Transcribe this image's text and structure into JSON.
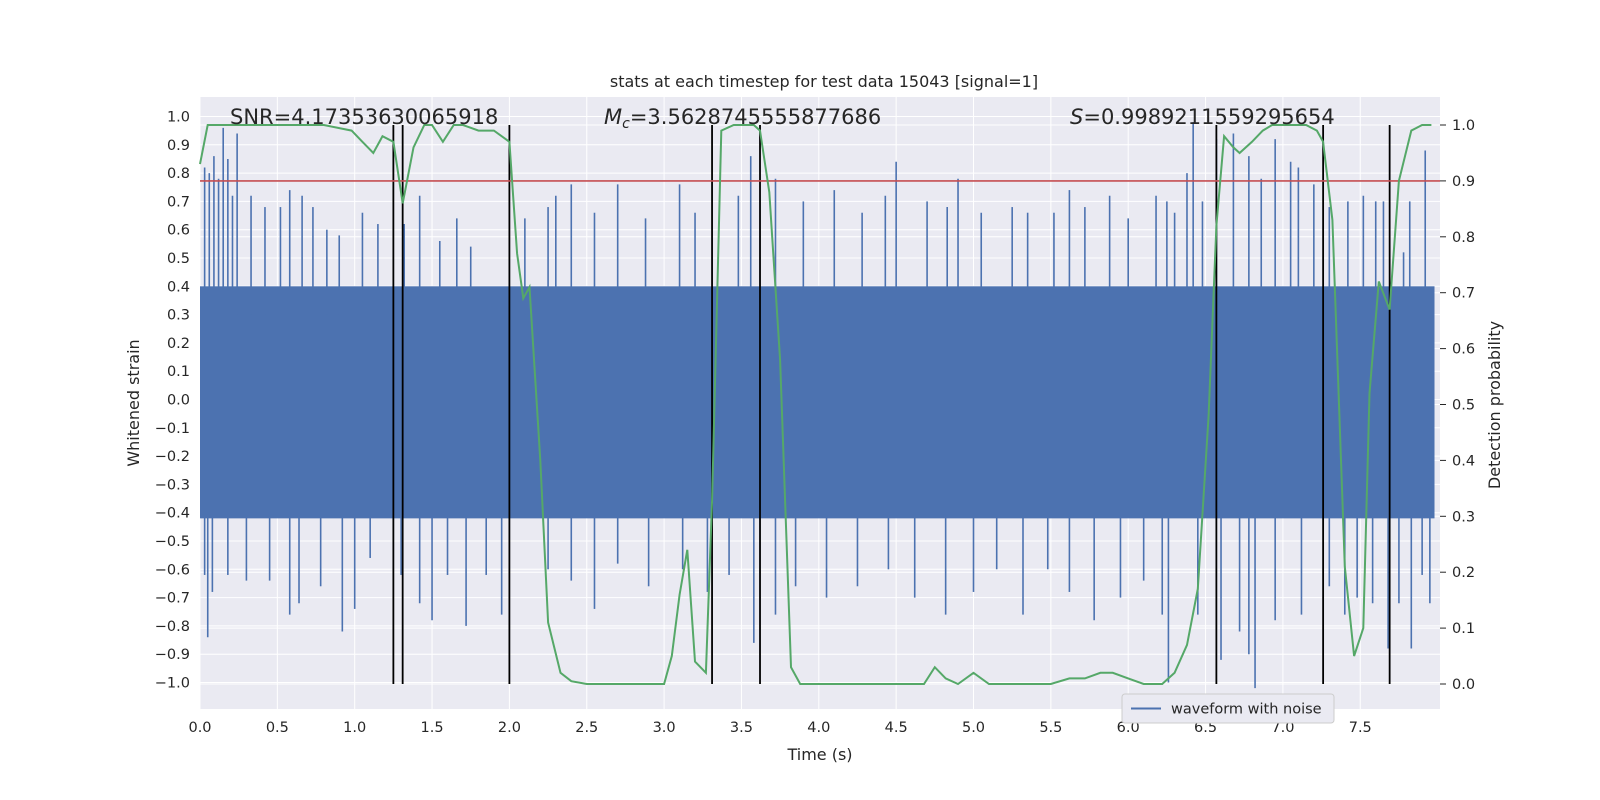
{
  "chart_data": {
    "type": "line",
    "title": "stats at each timestep for test data 15043 [signal=1]",
    "xlabel": "Time (s)",
    "ylabel_left": "Whitened strain",
    "ylabel_right": "Detection probability",
    "xlim": [
      0.0,
      8.0
    ],
    "ylim_left": [
      -1.1,
      1.1
    ],
    "ylim_right": [
      -0.05,
      1.03
    ],
    "x_ticks": [
      0.0,
      0.5,
      1.0,
      1.5,
      2.0,
      2.5,
      3.0,
      3.5,
      4.0,
      4.5,
      5.0,
      5.5,
      6.0,
      6.5,
      7.0,
      7.5
    ],
    "x_tick_labels": [
      "0.0",
      "0.5",
      "1.0",
      "1.5",
      "2.0",
      "2.5",
      "3.0",
      "3.5",
      "4.0",
      "4.5",
      "5.0",
      "5.5",
      "6.0",
      "6.5",
      "7.0",
      "7.5"
    ],
    "y_left_ticks": [
      -1.0,
      -0.9,
      -0.8,
      -0.7,
      -0.6,
      -0.5,
      -0.4,
      -0.3,
      -0.2,
      -0.1,
      0.0,
      0.1,
      0.2,
      0.3,
      0.4,
      0.5,
      0.6,
      0.7,
      0.8,
      0.9,
      1.0
    ],
    "y_left_tick_labels": [
      "−1.0",
      "−0.9",
      "−0.8",
      "−0.7",
      "−0.6",
      "−0.5",
      "−0.4",
      "−0.3",
      "−0.2",
      "−0.1",
      "0.0",
      "0.1",
      "0.2",
      "0.3",
      "0.4",
      "0.5",
      "0.6",
      "0.7",
      "0.8",
      "0.9",
      "1.0"
    ],
    "y_right_ticks": [
      0.0,
      0.1,
      0.2,
      0.3,
      0.4,
      0.5,
      0.6,
      0.7,
      0.8,
      0.9,
      1.0
    ],
    "y_right_tick_labels": [
      "0.0",
      "0.1",
      "0.2",
      "0.3",
      "0.4",
      "0.5",
      "0.6",
      "0.7",
      "0.8",
      "0.9",
      "1.0"
    ],
    "annotations": {
      "snr": "SNR=4.17353630065918",
      "mc_symbol": "M",
      "mc_sub": "c",
      "mc_value": "=3.5628745555877686",
      "s_symbol": "S",
      "s_value": "=0.9989211559295654"
    },
    "threshold": 0.9,
    "vlines_x": [
      1.25,
      1.31,
      2.0,
      3.31,
      3.62,
      6.57,
      7.26,
      7.69
    ],
    "waveform": {
      "name": "waveform with noise",
      "color": "#4c72b0",
      "band_low": -0.42,
      "band_high": 0.4,
      "upper_spikes": [
        [
          0.03,
          0.82
        ],
        [
          0.06,
          0.8
        ],
        [
          0.09,
          0.86
        ],
        [
          0.12,
          0.78
        ],
        [
          0.15,
          0.96
        ],
        [
          0.18,
          0.85
        ],
        [
          0.21,
          0.72
        ],
        [
          0.24,
          0.94
        ],
        [
          0.33,
          0.72
        ],
        [
          0.42,
          0.68
        ],
        [
          0.52,
          0.68
        ],
        [
          0.58,
          0.74
        ],
        [
          0.66,
          0.72
        ],
        [
          0.73,
          0.68
        ],
        [
          0.82,
          0.6
        ],
        [
          0.9,
          0.58
        ],
        [
          1.05,
          0.66
        ],
        [
          1.15,
          0.62
        ],
        [
          1.32,
          0.62
        ],
        [
          1.42,
          0.72
        ],
        [
          1.55,
          0.56
        ],
        [
          1.66,
          0.64
        ],
        [
          1.75,
          0.54
        ],
        [
          2.1,
          0.64
        ],
        [
          2.25,
          0.68
        ],
        [
          2.3,
          0.72
        ],
        [
          2.4,
          0.76
        ],
        [
          2.55,
          0.66
        ],
        [
          2.7,
          0.76
        ],
        [
          2.88,
          0.64
        ],
        [
          3.1,
          0.76
        ],
        [
          3.2,
          0.66
        ],
        [
          3.48,
          0.72
        ],
        [
          3.56,
          0.86
        ],
        [
          3.72,
          0.78
        ],
        [
          3.9,
          0.7
        ],
        [
          4.1,
          0.74
        ],
        [
          4.28,
          0.66
        ],
        [
          4.43,
          0.72
        ],
        [
          4.5,
          0.84
        ],
        [
          4.7,
          0.7
        ],
        [
          4.83,
          0.68
        ],
        [
          4.9,
          0.78
        ],
        [
          5.05,
          0.66
        ],
        [
          5.25,
          0.68
        ],
        [
          5.35,
          0.66
        ],
        [
          5.52,
          0.66
        ],
        [
          5.62,
          0.74
        ],
        [
          5.72,
          0.68
        ],
        [
          5.88,
          0.72
        ],
        [
          6.0,
          0.64
        ],
        [
          6.18,
          0.72
        ],
        [
          6.25,
          0.7
        ],
        [
          6.3,
          0.66
        ],
        [
          6.38,
          0.8
        ],
        [
          6.42,
          0.98
        ],
        [
          6.48,
          0.7
        ],
        [
          6.57,
          0.92
        ],
        [
          6.68,
          0.94
        ],
        [
          6.78,
          0.86
        ],
        [
          6.86,
          0.78
        ],
        [
          6.95,
          0.92
        ],
        [
          7.05,
          0.84
        ],
        [
          7.1,
          0.82
        ],
        [
          7.2,
          0.76
        ],
        [
          7.3,
          0.68
        ],
        [
          7.42,
          0.7
        ],
        [
          7.52,
          0.72
        ],
        [
          7.6,
          0.7
        ],
        [
          7.65,
          0.7
        ],
        [
          7.78,
          0.52
        ],
        [
          7.82,
          0.7
        ],
        [
          7.92,
          0.88
        ]
      ],
      "lower_spikes": [
        [
          0.03,
          -0.62
        ],
        [
          0.05,
          -0.84
        ],
        [
          0.08,
          -0.68
        ],
        [
          0.18,
          -0.62
        ],
        [
          0.3,
          -0.64
        ],
        [
          0.45,
          -0.64
        ],
        [
          0.58,
          -0.76
        ],
        [
          0.64,
          -0.72
        ],
        [
          0.78,
          -0.66
        ],
        [
          0.92,
          -0.82
        ],
        [
          1.0,
          -0.74
        ],
        [
          1.1,
          -0.56
        ],
        [
          1.3,
          -0.62
        ],
        [
          1.42,
          -0.72
        ],
        [
          1.5,
          -0.78
        ],
        [
          1.6,
          -0.62
        ],
        [
          1.72,
          -0.8
        ],
        [
          1.85,
          -0.62
        ],
        [
          1.95,
          -0.76
        ],
        [
          2.25,
          -0.6
        ],
        [
          2.4,
          -0.64
        ],
        [
          2.55,
          -0.74
        ],
        [
          2.7,
          -0.58
        ],
        [
          2.9,
          -0.66
        ],
        [
          3.12,
          -0.6
        ],
        [
          3.28,
          -0.68
        ],
        [
          3.42,
          -0.62
        ],
        [
          3.58,
          -0.86
        ],
        [
          3.72,
          -0.76
        ],
        [
          3.85,
          -0.66
        ],
        [
          4.05,
          -0.7
        ],
        [
          4.25,
          -0.66
        ],
        [
          4.45,
          -0.6
        ],
        [
          4.62,
          -0.7
        ],
        [
          4.82,
          -0.76
        ],
        [
          5.0,
          -0.68
        ],
        [
          5.15,
          -0.6
        ],
        [
          5.32,
          -0.76
        ],
        [
          5.48,
          -0.6
        ],
        [
          5.62,
          -0.68
        ],
        [
          5.78,
          -0.78
        ],
        [
          5.95,
          -0.7
        ],
        [
          6.1,
          -0.64
        ],
        [
          6.22,
          -0.76
        ],
        [
          6.26,
          -1.0
        ],
        [
          6.45,
          -0.76
        ],
        [
          6.6,
          -0.92
        ],
        [
          6.72,
          -0.82
        ],
        [
          6.78,
          -0.9
        ],
        [
          6.82,
          -1.02
        ],
        [
          6.95,
          -0.78
        ],
        [
          7.12,
          -0.76
        ],
        [
          7.3,
          -0.66
        ],
        [
          7.4,
          -0.76
        ],
        [
          7.48,
          -0.7
        ],
        [
          7.58,
          -0.72
        ],
        [
          7.68,
          -0.88
        ],
        [
          7.75,
          -0.72
        ],
        [
          7.83,
          -0.88
        ],
        [
          7.9,
          -0.62
        ],
        [
          7.95,
          -0.72
        ]
      ]
    },
    "probability": {
      "color": "#55a868",
      "points": [
        [
          0.0,
          0.93
        ],
        [
          0.05,
          1.0
        ],
        [
          0.2,
          1.0
        ],
        [
          0.5,
          1.0
        ],
        [
          0.8,
          1.0
        ],
        [
          0.98,
          0.99
        ],
        [
          1.05,
          0.97
        ],
        [
          1.12,
          0.95
        ],
        [
          1.18,
          0.98
        ],
        [
          1.25,
          0.97
        ],
        [
          1.31,
          0.86
        ],
        [
          1.38,
          0.96
        ],
        [
          1.45,
          1.0
        ],
        [
          1.5,
          1.0
        ],
        [
          1.57,
          0.97
        ],
        [
          1.64,
          1.0
        ],
        [
          1.7,
          1.0
        ],
        [
          1.8,
          0.99
        ],
        [
          1.9,
          0.99
        ],
        [
          2.0,
          0.97
        ],
        [
          2.05,
          0.77
        ],
        [
          2.09,
          0.69
        ],
        [
          2.13,
          0.71
        ],
        [
          2.2,
          0.4
        ],
        [
          2.25,
          0.11
        ],
        [
          2.33,
          0.02
        ],
        [
          2.4,
          0.005
        ],
        [
          2.5,
          0.0
        ],
        [
          3.0,
          0.0
        ],
        [
          3.05,
          0.05
        ],
        [
          3.1,
          0.16
        ],
        [
          3.15,
          0.24
        ],
        [
          3.2,
          0.04
        ],
        [
          3.27,
          0.02
        ],
        [
          3.31,
          0.33
        ],
        [
          3.37,
          0.99
        ],
        [
          3.45,
          1.0
        ],
        [
          3.52,
          1.0
        ],
        [
          3.58,
          1.0
        ],
        [
          3.62,
          0.99
        ],
        [
          3.68,
          0.88
        ],
        [
          3.75,
          0.58
        ],
        [
          3.82,
          0.03
        ],
        [
          3.88,
          0.0
        ],
        [
          4.0,
          0.0
        ],
        [
          4.5,
          0.0
        ],
        [
          4.6,
          0.0
        ],
        [
          4.68,
          0.0
        ],
        [
          4.75,
          0.03
        ],
        [
          4.82,
          0.01
        ],
        [
          4.9,
          0.0
        ],
        [
          5.0,
          0.02
        ],
        [
          5.1,
          0.0
        ],
        [
          5.3,
          0.0
        ],
        [
          5.5,
          0.0
        ],
        [
          5.62,
          0.01
        ],
        [
          5.72,
          0.01
        ],
        [
          5.82,
          0.02
        ],
        [
          5.9,
          0.02
        ],
        [
          6.0,
          0.01
        ],
        [
          6.1,
          0.0
        ],
        [
          6.22,
          0.0
        ],
        [
          6.3,
          0.02
        ],
        [
          6.38,
          0.07
        ],
        [
          6.45,
          0.17
        ],
        [
          6.52,
          0.48
        ],
        [
          6.57,
          0.82
        ],
        [
          6.62,
          0.98
        ],
        [
          6.68,
          0.96
        ],
        [
          6.72,
          0.95
        ],
        [
          6.8,
          0.97
        ],
        [
          6.87,
          0.99
        ],
        [
          6.93,
          1.0
        ],
        [
          7.05,
          1.0
        ],
        [
          7.15,
          1.0
        ],
        [
          7.22,
          0.99
        ],
        [
          7.26,
          0.97
        ],
        [
          7.32,
          0.83
        ],
        [
          7.4,
          0.21
        ],
        [
          7.46,
          0.05
        ],
        [
          7.52,
          0.1
        ],
        [
          7.56,
          0.52
        ],
        [
          7.62,
          0.72
        ],
        [
          7.69,
          0.67
        ],
        [
          7.75,
          0.9
        ],
        [
          7.83,
          0.99
        ],
        [
          7.9,
          1.0
        ],
        [
          7.96,
          1.0
        ]
      ]
    },
    "threshold_color": "#c44e52",
    "vline_color": "#000000",
    "legend": {
      "position": "lower-right",
      "label": "waveform with noise"
    }
  }
}
